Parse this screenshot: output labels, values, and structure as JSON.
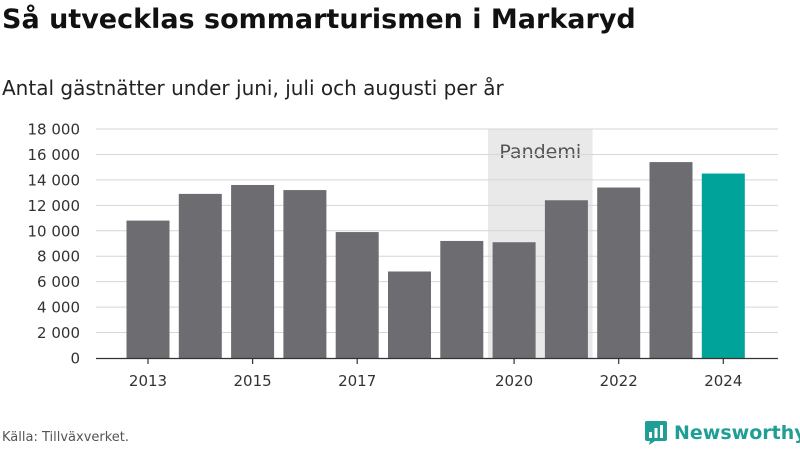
{
  "header": {
    "title": "Så utvecklas sommarturismen i Markaryd",
    "subtitle": "Antal gästnätter under juni, juli och augusti per år"
  },
  "footer": {
    "source": "Källa: Tillväxverket.",
    "brand": "Newsworthy",
    "brand_icon": "newsworthy-logo-icon"
  },
  "colors": {
    "bar": "#6d6c71",
    "highlight": "#00a39a",
    "band": "#e9e9e9",
    "grid": "#d6d6d6",
    "axis": "#333333",
    "brand": "#1f9e95"
  },
  "chart_data": {
    "type": "bar",
    "categories": [
      "2013",
      "2014",
      "2015",
      "2016",
      "2017",
      "2018",
      "2019",
      "2020",
      "2021",
      "2022",
      "2023",
      "2024"
    ],
    "values": [
      10800,
      12900,
      13600,
      13200,
      9900,
      6800,
      9200,
      9100,
      12400,
      13400,
      15400,
      14500
    ],
    "highlight_category": "2024",
    "x_tick_labels": [
      "2013",
      "2015",
      "2017",
      "2020",
      "2022",
      "2024"
    ],
    "y_tick_labels": [
      "0",
      "2 000",
      "4 000",
      "6 000",
      "8 000",
      "10 000",
      "12 000",
      "14 000",
      "16 000",
      "18 000"
    ],
    "y_ticks": [
      0,
      2000,
      4000,
      6000,
      8000,
      10000,
      12000,
      14000,
      16000,
      18000
    ],
    "ylim": [
      0,
      18000
    ],
    "annotation": {
      "label": "Pandemi",
      "from": "2020",
      "to": "2021"
    },
    "grid": true
  }
}
